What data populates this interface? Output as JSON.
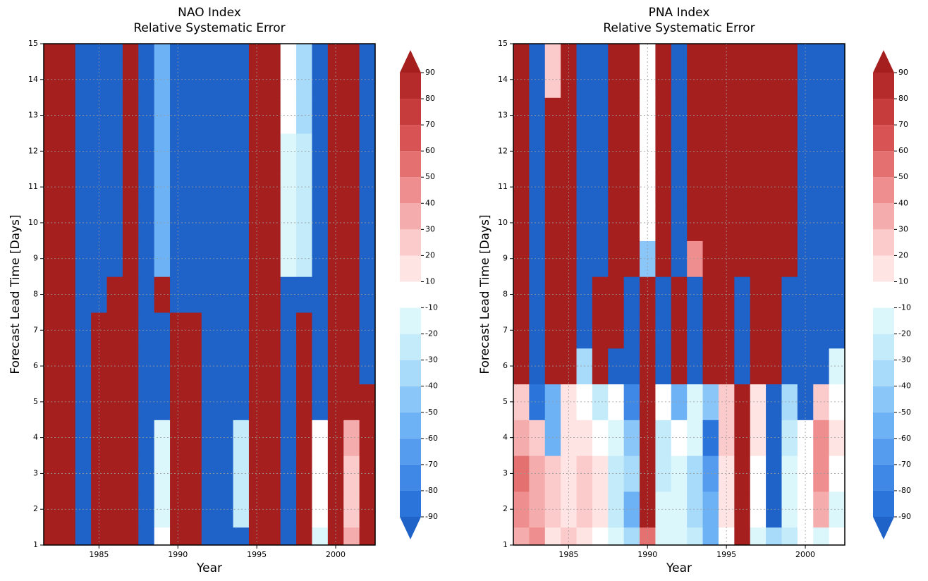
{
  "chart_data": [
    {
      "type": "heatmap",
      "title": "NAO Index",
      "subtitle": "Relative Systematic Error",
      "xlabel": "Year",
      "ylabel": "Forecast Lead Time  [Days]",
      "xlim": [
        1981.5,
        2002.5
      ],
      "ylim": [
        1,
        15
      ],
      "xticks": [
        1985,
        1990,
        1995,
        2000
      ],
      "yticks": [
        1,
        2,
        3,
        4,
        5,
        6,
        7,
        8,
        9,
        10,
        11,
        12,
        13,
        14,
        15
      ],
      "grid": true,
      "x": [
        1982,
        1983,
        1984,
        1985,
        1986,
        1987,
        1988,
        1989,
        1990,
        1991,
        1992,
        1993,
        1994,
        1995,
        1996,
        1997,
        1998,
        1999,
        2000,
        2001,
        2002
      ],
      "y": [
        1,
        2,
        3,
        4,
        5,
        6,
        7,
        8,
        9,
        10,
        11,
        12,
        13,
        14,
        15
      ],
      "z": [
        [
          95,
          95,
          -95,
          95,
          95,
          95,
          -95,
          -10,
          95,
          95,
          -95,
          -95,
          -95,
          95,
          95,
          -95,
          95,
          -20,
          95,
          30,
          95
        ],
        [
          95,
          95,
          -95,
          95,
          95,
          95,
          -95,
          -20,
          95,
          95,
          -95,
          -95,
          -30,
          95,
          95,
          -95,
          95,
          -10,
          95,
          20,
          95
        ],
        [
          95,
          95,
          -95,
          95,
          95,
          95,
          -95,
          -20,
          95,
          95,
          -95,
          -95,
          -30,
          95,
          95,
          -95,
          95,
          -10,
          95,
          20,
          95
        ],
        [
          95,
          95,
          -95,
          95,
          95,
          95,
          -95,
          -20,
          95,
          95,
          -95,
          -95,
          -30,
          95,
          95,
          -95,
          95,
          -10,
          95,
          30,
          95
        ],
        [
          95,
          95,
          -95,
          95,
          95,
          95,
          -95,
          -95,
          95,
          95,
          -95,
          -95,
          -95,
          95,
          95,
          -95,
          95,
          -95,
          95,
          95,
          95
        ],
        [
          95,
          95,
          -95,
          95,
          95,
          95,
          -95,
          -95,
          95,
          95,
          -95,
          -95,
          -95,
          95,
          95,
          -95,
          95,
          -95,
          95,
          95,
          -95
        ],
        [
          95,
          95,
          -95,
          95,
          95,
          95,
          -95,
          -95,
          95,
          95,
          -95,
          -95,
          -95,
          95,
          95,
          -95,
          95,
          -95,
          95,
          95,
          -95
        ],
        [
          95,
          95,
          -95,
          -95,
          95,
          95,
          -95,
          95,
          -95,
          -95,
          -95,
          -95,
          -95,
          95,
          95,
          -95,
          -95,
          -95,
          95,
          95,
          -95
        ],
        [
          95,
          95,
          -95,
          -95,
          -95,
          95,
          -95,
          -60,
          -95,
          -95,
          -95,
          -95,
          -95,
          95,
          95,
          -20,
          -30,
          -95,
          95,
          95,
          -95
        ],
        [
          95,
          95,
          -95,
          -95,
          -95,
          95,
          -95,
          -60,
          -95,
          -95,
          -95,
          -95,
          -95,
          95,
          95,
          -20,
          -30,
          -95,
          95,
          95,
          -95
        ],
        [
          95,
          95,
          -95,
          -95,
          -95,
          95,
          -95,
          -60,
          -95,
          -95,
          -95,
          -95,
          -95,
          95,
          95,
          -20,
          -30,
          -95,
          95,
          95,
          -95
        ],
        [
          95,
          95,
          -95,
          -95,
          -95,
          95,
          -95,
          -60,
          -95,
          -95,
          -95,
          -95,
          -95,
          95,
          95,
          -20,
          -30,
          -95,
          95,
          95,
          -95
        ],
        [
          95,
          95,
          -95,
          -95,
          -95,
          95,
          -95,
          -60,
          -95,
          -95,
          -95,
          -95,
          -95,
          95,
          95,
          -10,
          -40,
          -95,
          95,
          95,
          -95
        ],
        [
          95,
          95,
          -95,
          -95,
          -95,
          95,
          -95,
          -60,
          -95,
          -95,
          -95,
          -95,
          -95,
          95,
          95,
          -10,
          -40,
          -95,
          95,
          95,
          -95
        ],
        [
          95,
          95,
          -95,
          -95,
          -95,
          95,
          -95,
          -60,
          -95,
          -95,
          -95,
          -95,
          -95,
          95,
          95,
          -10,
          -40,
          -95,
          95,
          95,
          -95
        ]
      ],
      "colorbar": {
        "levels": [
          -90,
          -80,
          -70,
          -60,
          -50,
          -40,
          -30,
          -20,
          -10,
          10,
          20,
          30,
          40,
          50,
          60,
          70,
          80,
          90
        ],
        "colors": [
          "#1f62c8",
          "#2a74da",
          "#3f88e6",
          "#559cef",
          "#6cb2f5",
          "#8ac6f8",
          "#a8daf9",
          "#c3ebfa",
          "#dcf7fb",
          "#ffffff",
          "#ffe4e4",
          "#fbcaca",
          "#f5acac",
          "#ee8e8e",
          "#e47070",
          "#d85454",
          "#c63c3c",
          "#b52a2a",
          "#a51f1f"
        ]
      }
    },
    {
      "type": "heatmap",
      "title": "PNA Index",
      "subtitle": "Relative Systematic Error",
      "xlabel": "Year",
      "ylabel": "Forecast Lead Time  [Days]",
      "xlim": [
        1981.5,
        2002.5
      ],
      "ylim": [
        1,
        15
      ],
      "xticks": [
        1985,
        1990,
        1995,
        2000
      ],
      "yticks": [
        1,
        2,
        3,
        4,
        5,
        6,
        7,
        8,
        9,
        10,
        11,
        12,
        13,
        14,
        15
      ],
      "grid": true,
      "x": [
        1982,
        1983,
        1984,
        1985,
        1986,
        1987,
        1988,
        1989,
        1990,
        1991,
        1992,
        1993,
        1994,
        1995,
        1996,
        1997,
        1998,
        1999,
        2000,
        2001,
        2002
      ],
      "y": [
        1,
        2,
        3,
        4,
        5,
        6,
        7,
        8,
        9,
        10,
        11,
        12,
        13,
        14,
        15
      ],
      "z": [
        [
          30,
          40,
          10,
          20,
          10,
          -10,
          -20,
          -40,
          50,
          -20,
          -20,
          -30,
          -60,
          -10,
          95,
          -20,
          -40,
          -30,
          -10,
          -20,
          -10
        ],
        [
          40,
          30,
          20,
          10,
          20,
          10,
          -30,
          -60,
          95,
          -20,
          -20,
          -40,
          -60,
          10,
          95,
          -10,
          -95,
          -20,
          -10,
          30,
          -20
        ],
        [
          50,
          30,
          20,
          10,
          20,
          10,
          -30,
          -40,
          95,
          -30,
          -20,
          -40,
          -70,
          10,
          95,
          -10,
          -95,
          -20,
          -10,
          40,
          -10
        ],
        [
          30,
          20,
          -60,
          10,
          10,
          -10,
          -20,
          -50,
          95,
          -30,
          -10,
          -20,
          -90,
          20,
          95,
          10,
          -95,
          -30,
          -10,
          40,
          10
        ],
        [
          20,
          -90,
          -60,
          10,
          -10,
          -30,
          -10,
          -80,
          95,
          -10,
          -60,
          -20,
          -50,
          20,
          95,
          10,
          -95,
          -40,
          -95,
          20,
          -10
        ],
        [
          95,
          -95,
          95,
          95,
          -40,
          95,
          -95,
          -95,
          95,
          -95,
          95,
          -95,
          95,
          95,
          -95,
          95,
          95,
          -95,
          -95,
          -95,
          -20
        ],
        [
          95,
          -95,
          95,
          95,
          -95,
          95,
          95,
          -95,
          95,
          -95,
          95,
          -95,
          95,
          95,
          -95,
          95,
          95,
          -95,
          -95,
          -95,
          -95
        ],
        [
          95,
          -95,
          95,
          95,
          -95,
          95,
          95,
          -95,
          95,
          -95,
          95,
          -95,
          95,
          95,
          -95,
          95,
          95,
          -95,
          -95,
          -95,
          -95
        ],
        [
          95,
          -95,
          95,
          95,
          -95,
          -95,
          95,
          95,
          -50,
          95,
          -95,
          40,
          95,
          95,
          95,
          95,
          95,
          95,
          -95,
          -95,
          -95
        ],
        [
          95,
          -95,
          95,
          95,
          -95,
          -95,
          95,
          95,
          -10,
          95,
          -95,
          95,
          95,
          95,
          95,
          95,
          95,
          95,
          -95,
          -95,
          -95
        ],
        [
          95,
          -95,
          95,
          95,
          -95,
          -95,
          95,
          95,
          -10,
          95,
          -95,
          95,
          95,
          95,
          95,
          95,
          95,
          95,
          -95,
          -95,
          -95
        ],
        [
          95,
          -95,
          95,
          95,
          -95,
          -95,
          95,
          95,
          -10,
          95,
          -95,
          95,
          95,
          95,
          95,
          95,
          95,
          95,
          -95,
          -95,
          -95
        ],
        [
          95,
          -95,
          95,
          95,
          -95,
          -95,
          95,
          95,
          -10,
          95,
          -95,
          95,
          95,
          95,
          95,
          95,
          95,
          95,
          -95,
          -95,
          -95
        ],
        [
          95,
          -95,
          20,
          95,
          -95,
          -95,
          95,
          95,
          -10,
          95,
          -95,
          95,
          95,
          95,
          95,
          95,
          95,
          95,
          -95,
          -95,
          -95
        ],
        [
          95,
          -95,
          20,
          95,
          -95,
          -95,
          95,
          95,
          -10,
          95,
          -95,
          95,
          95,
          95,
          95,
          95,
          95,
          95,
          -95,
          -95,
          -95
        ]
      ],
      "colorbar": {
        "levels": [
          -90,
          -80,
          -70,
          -60,
          -50,
          -40,
          -30,
          -20,
          -10,
          10,
          20,
          30,
          40,
          50,
          60,
          70,
          80,
          90
        ],
        "colors": [
          "#1f62c8",
          "#2a74da",
          "#3f88e6",
          "#559cef",
          "#6cb2f5",
          "#8ac6f8",
          "#a8daf9",
          "#c3ebfa",
          "#dcf7fb",
          "#ffffff",
          "#ffe4e4",
          "#fbcaca",
          "#f5acac",
          "#ee8e8e",
          "#e47070",
          "#d85454",
          "#c63c3c",
          "#b52a2a",
          "#a51f1f"
        ]
      }
    }
  ]
}
